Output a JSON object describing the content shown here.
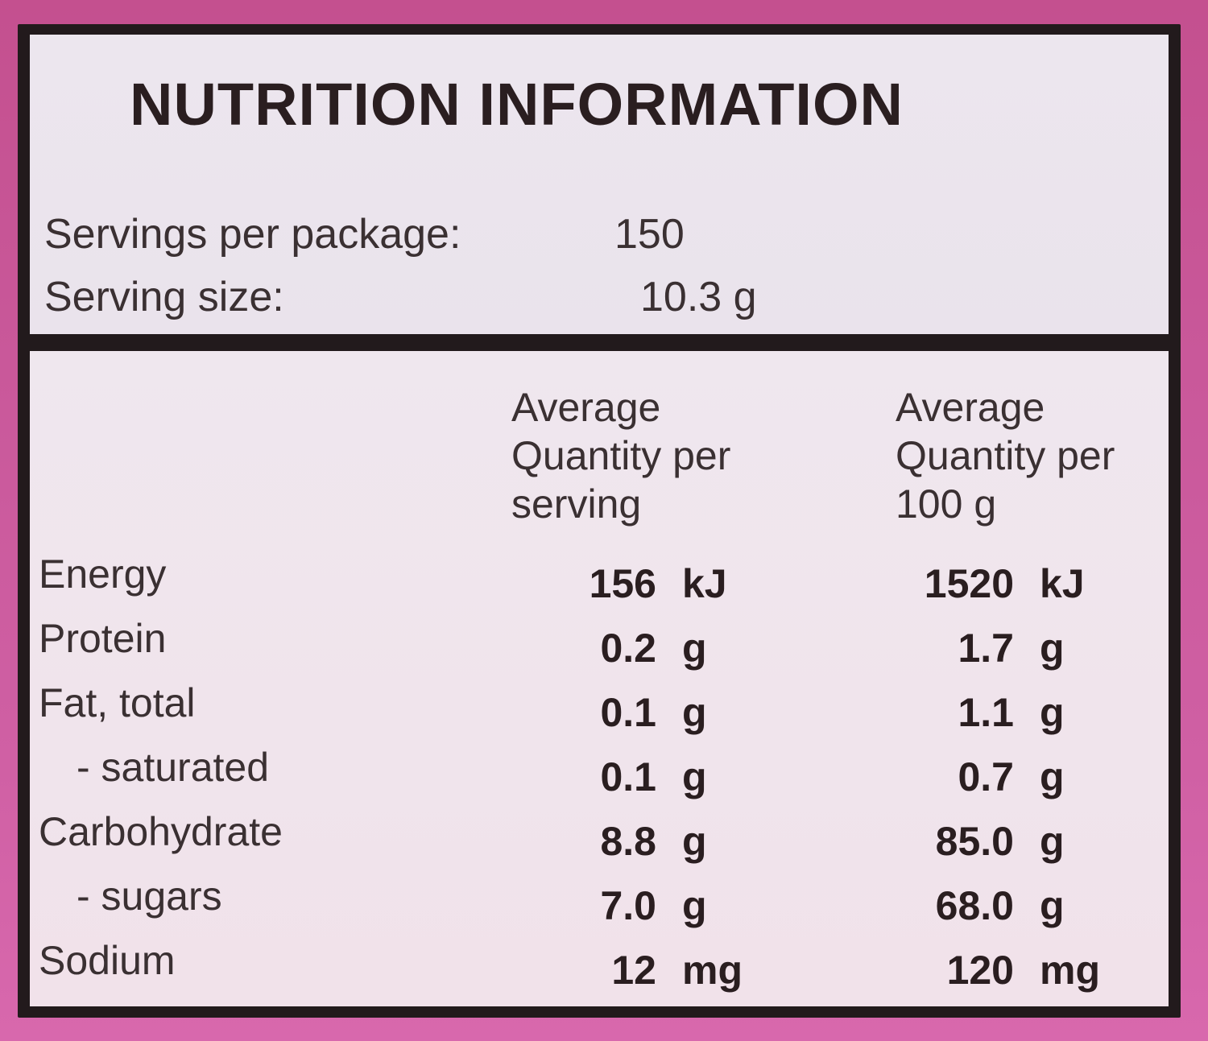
{
  "title": "NUTRITION INFORMATION",
  "servings": {
    "per_package_label": "Servings per package:",
    "per_package_value": "150",
    "size_label": "Serving size:",
    "size_value": "10.3 g"
  },
  "columns": {
    "per_serving": [
      "Average",
      "Quantity per",
      "serving"
    ],
    "per_100g": [
      "Average",
      "Quantity per",
      "100 g"
    ]
  },
  "rows": [
    {
      "label": "Energy",
      "serving_value": "156",
      "serving_unit": "kJ",
      "per100_value": "1520",
      "per100_unit": "kJ"
    },
    {
      "label": "Protein",
      "serving_value": "0.2",
      "serving_unit": "g",
      "per100_value": "1.7",
      "per100_unit": "g"
    },
    {
      "label": "Fat, total",
      "serving_value": "0.1",
      "serving_unit": "g",
      "per100_value": "1.1",
      "per100_unit": "g"
    },
    {
      "label": "- saturated",
      "serving_value": "0.1",
      "serving_unit": "g",
      "per100_value": "0.7",
      "per100_unit": "g"
    },
    {
      "label": "Carbohydrate",
      "serving_value": "8.8",
      "serving_unit": "g",
      "per100_value": "85.0",
      "per100_unit": "g"
    },
    {
      "label": "- sugars",
      "serving_value": "7.0",
      "serving_unit": "g",
      "per100_value": "68.0",
      "per100_unit": "g"
    },
    {
      "label": "Sodium",
      "serving_value": "12",
      "serving_unit": "mg",
      "per100_value": "120",
      "per100_unit": "mg"
    }
  ],
  "colors": {
    "background": "#cc5a9c",
    "border": "#221a1c",
    "panel": "#ece6ee",
    "text": "#2a1e20"
  }
}
